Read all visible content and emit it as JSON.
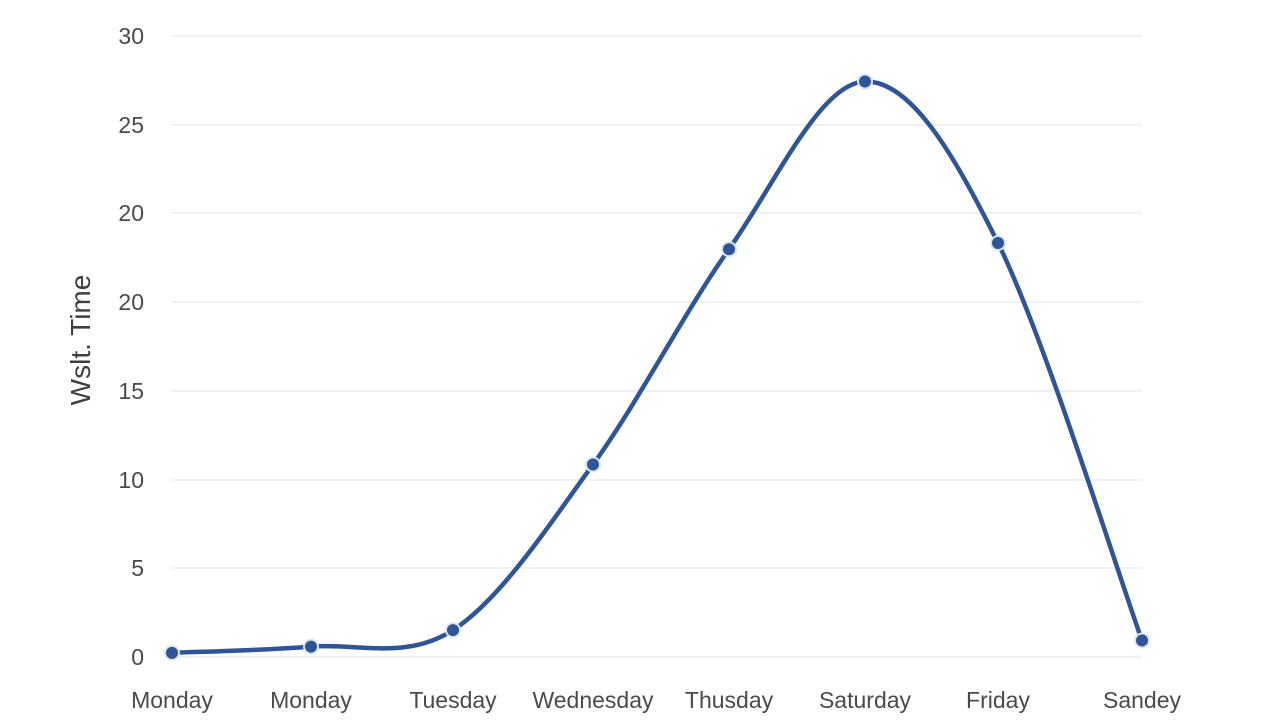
{
  "chart_data": {
    "type": "line",
    "categories": [
      "Monday",
      "Monday",
      "Tuesday",
      "Wednesday",
      "Thusday",
      "Saturday",
      "Friday",
      "Sandey"
    ],
    "series": [
      {
        "values": [
          0.2,
          0.5,
          1.3,
          9.3,
          19.7,
          27.8,
          20.0,
          0.8
        ]
      }
    ],
    "y_tick_labels": [
      "0",
      "5",
      "10",
      "15",
      "20",
      "20",
      "25",
      "30"
    ],
    "ylabel": "Wslt. Time",
    "xlabel": "",
    "title": "",
    "ylim": [
      0,
      30
    ],
    "grid": true,
    "line_color": "#2f5597",
    "marker_color": "#2f5597",
    "grid_color": "#e9edf3"
  }
}
